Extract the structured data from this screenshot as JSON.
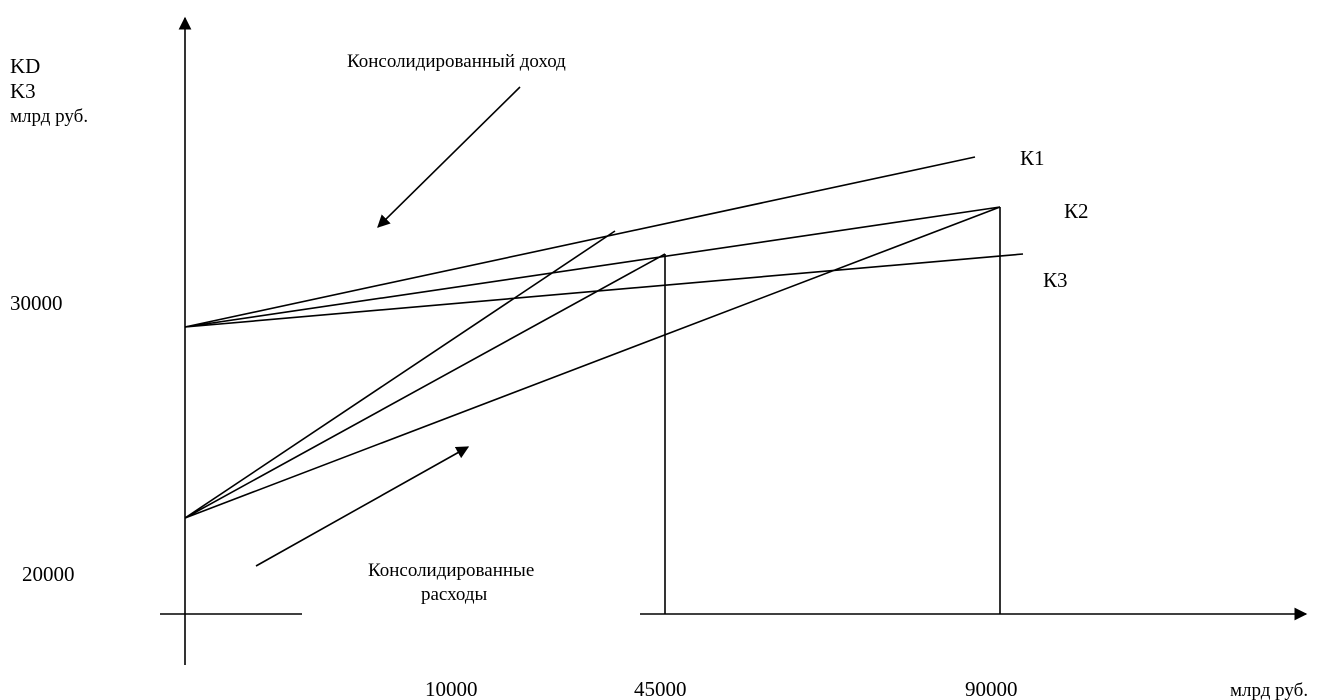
{
  "y_axis_label": {
    "line1": "KD",
    "line2": "K3",
    "line3": "млрд руб."
  },
  "x_axis_unit": "млрд руб.",
  "y_ticks": [
    "30000",
    "20000"
  ],
  "x_ticks": [
    "10000",
    "45000",
    "90000"
  ],
  "annotations": {
    "income": "Консолидированный доход",
    "expenses_line1": "Консолидированные",
    "expenses_line2": "расходы"
  },
  "curves": {
    "k1": "К1",
    "k2": "К2",
    "k3": "К3"
  },
  "colors": {
    "ink": "#000000",
    "background": "#ffffff"
  }
}
